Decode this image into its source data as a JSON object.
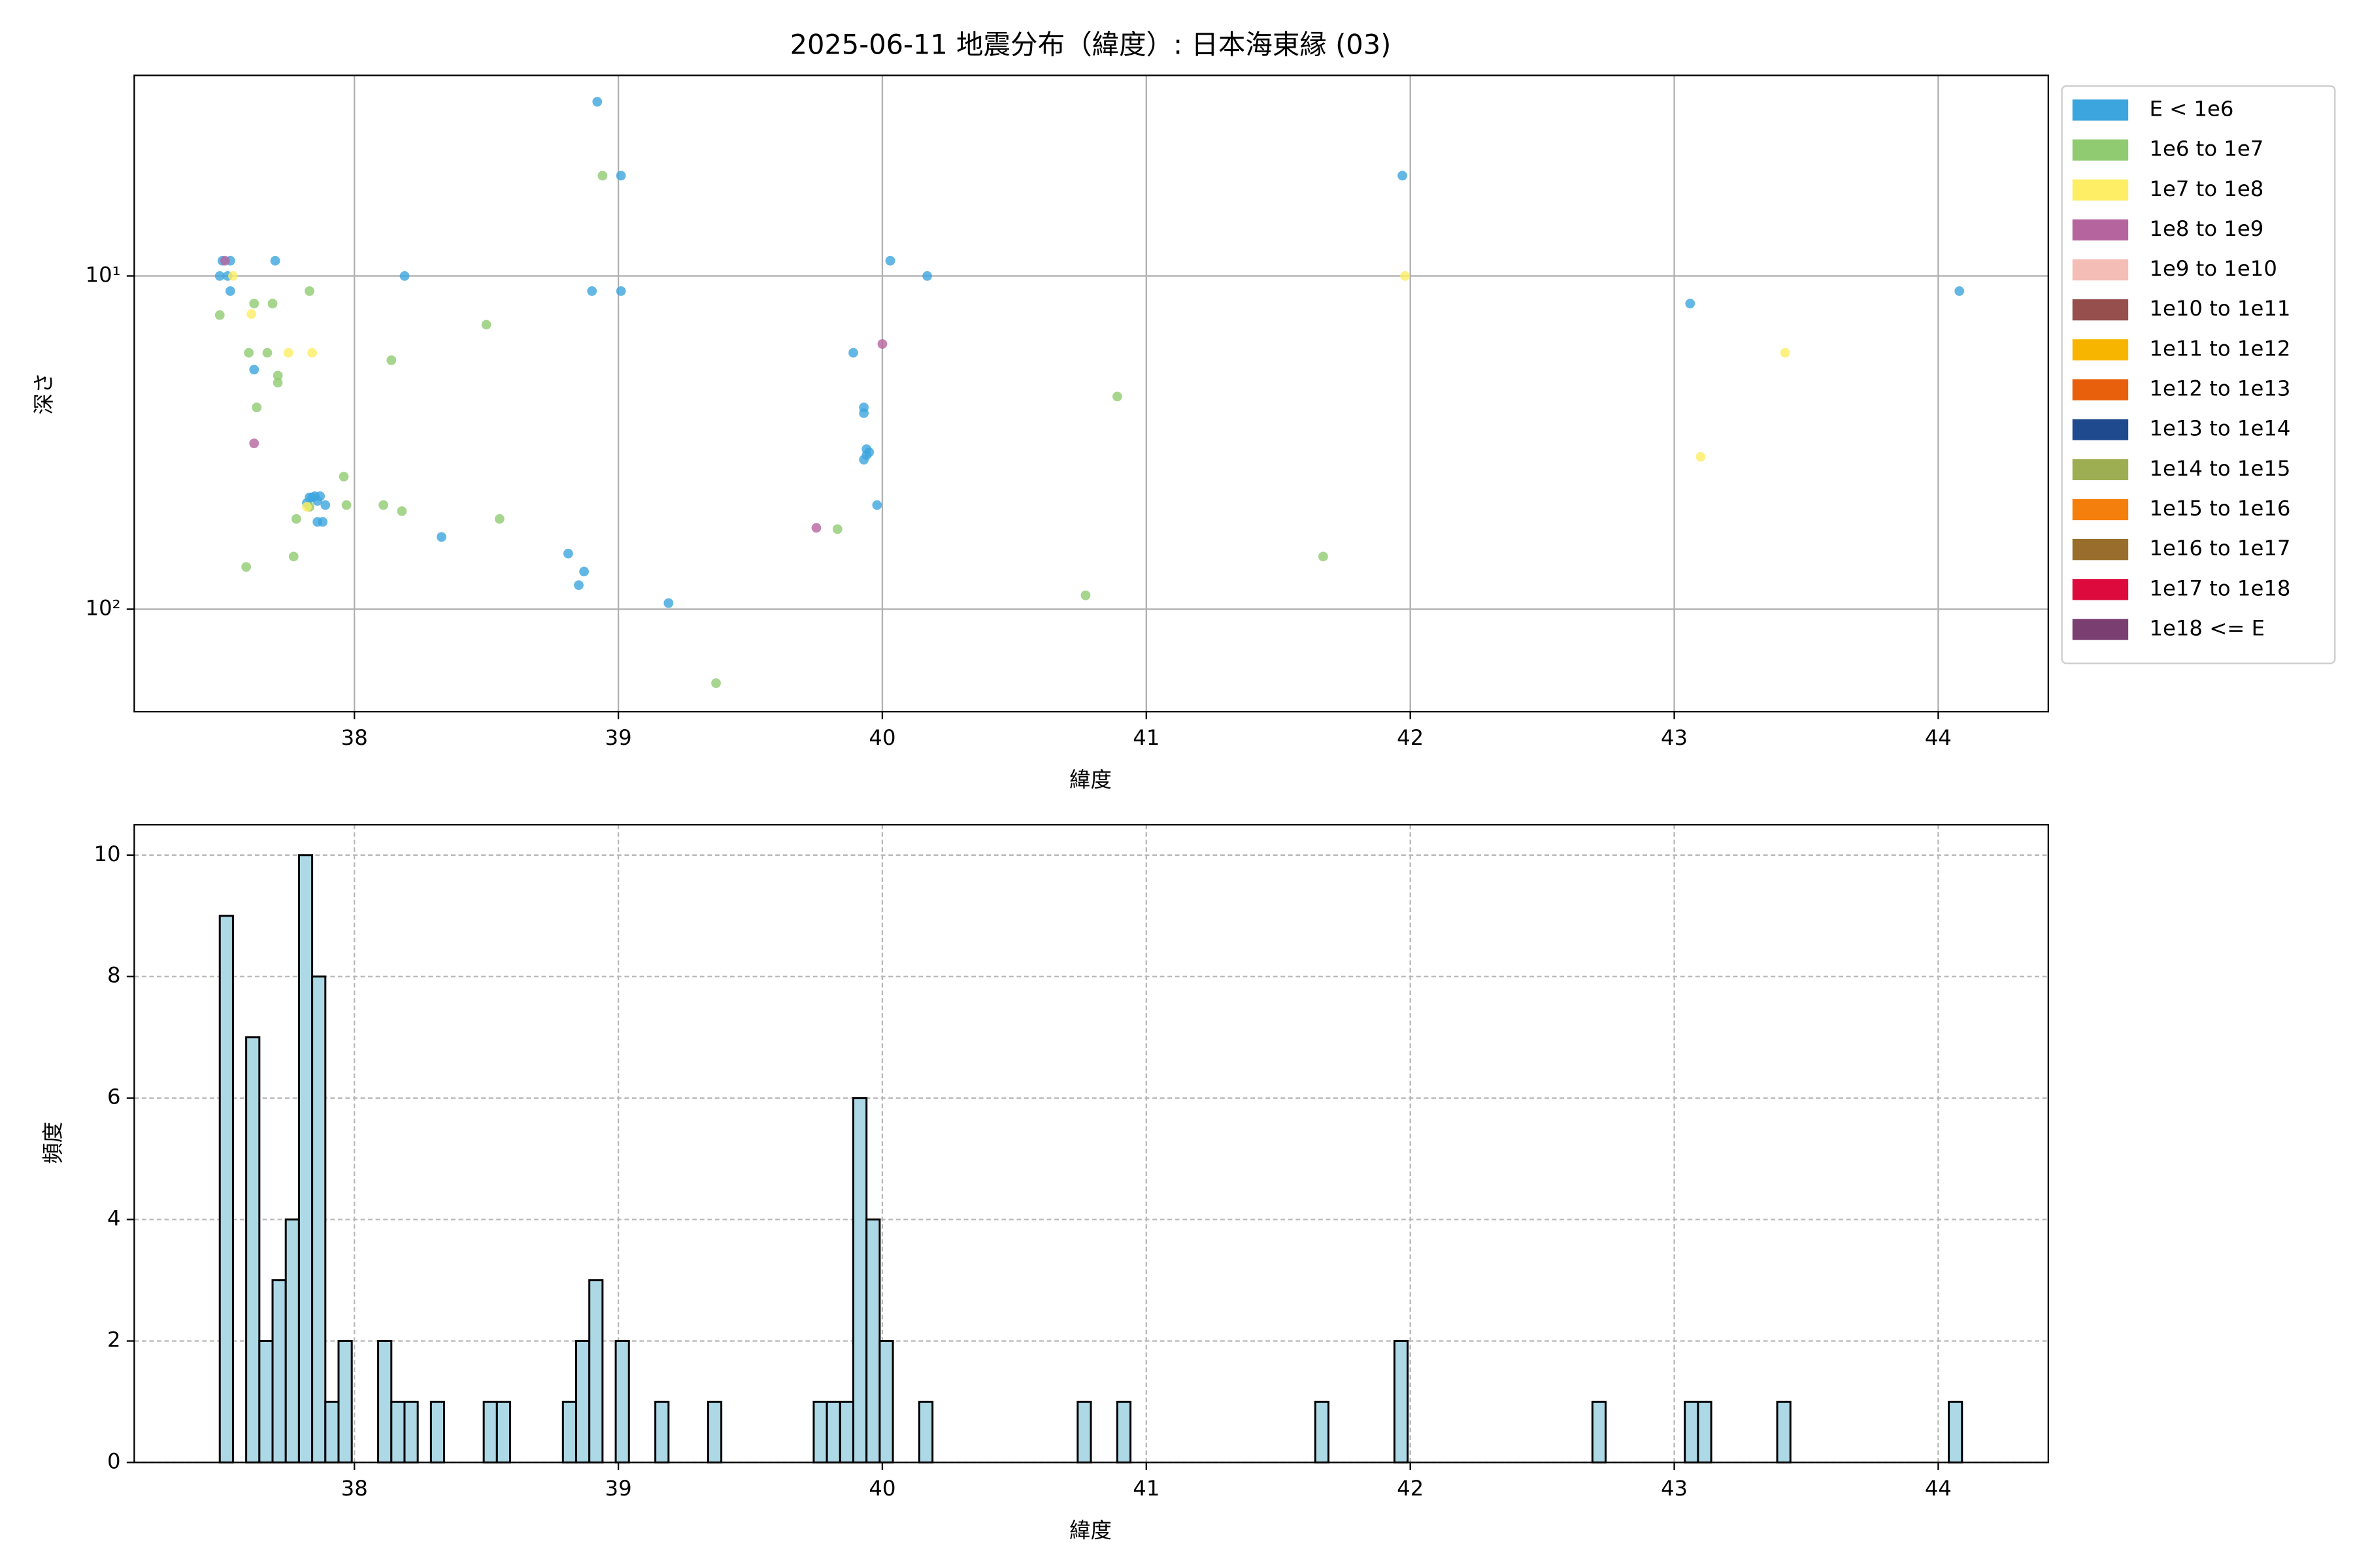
{
  "chart_data": [
    {
      "type": "scatter",
      "title": "2025-06-11 地震分布（緯度）: 日本海東縁 (03)",
      "xlabel": "緯度",
      "ylabel": "深さ",
      "xlim": [
        37.166,
        44.417
      ],
      "xticks": [
        38,
        39,
        40,
        41,
        42,
        43,
        44
      ],
      "ylim": [
        203,
        2.5
      ],
      "yscale": "log",
      "yticks": [
        {
          "value": 10,
          "label": "10¹"
        },
        {
          "value": 100,
          "label": "10²"
        }
      ],
      "grid": true,
      "legend": "outside",
      "series": [
        {
          "name": "E < 1e6",
          "color": "#3ca5dd",
          "x": [
            38.92,
            39.01,
            41.97,
            37.5,
            37.53,
            37.7,
            37.49,
            37.52,
            37.53,
            38.19,
            38.9,
            39.01,
            40.03,
            40.17,
            43.06,
            44.08,
            37.62,
            39.89,
            39.93,
            39.93,
            39.94,
            39.95,
            39.94,
            39.93,
            39.98,
            37.83,
            37.84,
            37.85,
            37.87,
            37.82,
            37.86,
            37.89,
            37.86,
            37.88,
            38.33,
            38.81,
            38.87,
            38.85,
            39.19
          ],
          "y": [
            3.0,
            5.0,
            5.0,
            9.0,
            9.0,
            9.0,
            10,
            10,
            11.1,
            10,
            11.1,
            11.1,
            9.0,
            10,
            12.1,
            11.1,
            19.1,
            17.0,
            24.8,
            25.8,
            33.1,
            33.8,
            34.5,
            35.6,
            48.7,
            46.2,
            46.2,
            45.8,
            45.8,
            48.0,
            47.3,
            48.7,
            54.7,
            54.7,
            60.7,
            68.1,
            77.1,
            84.7,
            95.9
          ]
        },
        {
          "name": "1e6 to 1e7",
          "color": "#90cb72",
          "x": [
            38.94,
            37.49,
            37.62,
            37.69,
            37.83,
            38.5,
            37.6,
            37.67,
            38.14,
            37.71,
            37.71,
            37.63,
            40.89,
            37.96,
            37.97,
            38.11,
            38.18,
            38.55,
            37.78,
            39.83,
            37.77,
            37.59,
            41.67,
            40.77,
            39.37,
            37.83
          ],
          "y": [
            5.0,
            13.1,
            12.1,
            12.1,
            11.1,
            14.0,
            17.0,
            17.0,
            17.9,
            19.9,
            20.9,
            24.8,
            23.0,
            40.0,
            48.7,
            48.7,
            50.8,
            53.6,
            53.6,
            57.5,
            69.5,
            74.7,
            69.5,
            90.9,
            166.7,
            49.3
          ]
        },
        {
          "name": "1e7 to 1e8",
          "color": "#fdee65",
          "x": [
            37.54,
            37.61,
            37.75,
            37.84,
            41.98,
            43.42,
            43.1,
            37.82
          ],
          "y": [
            10,
            13.0,
            17.0,
            17.0,
            10,
            17.0,
            34.9,
            49.3
          ]
        },
        {
          "name": "1e8 to 1e9",
          "color": "#b5649e",
          "x": [
            37.51,
            40.0,
            37.62,
            39.75
          ],
          "y": [
            9.0,
            16.0,
            31.8,
            57.0
          ]
        },
        {
          "name": "1e9 to 1e10",
          "color": "#f4bdb5",
          "x": [],
          "y": []
        },
        {
          "name": "1e10 to 1e11",
          "color": "#964f4c",
          "x": [],
          "y": []
        },
        {
          "name": "1e11 to 1e12",
          "color": "#f7b500",
          "x": [],
          "y": []
        },
        {
          "name": "1e12 to 1e13",
          "color": "#e8600c",
          "x": [],
          "y": []
        },
        {
          "name": "1e13 to 1e14",
          "color": "#1f4a8e",
          "x": [],
          "y": []
        },
        {
          "name": "1e14 to 1e15",
          "color": "#9cae51",
          "x": [],
          "y": []
        },
        {
          "name": "1e15 to 1e16",
          "color": "#f57f0d",
          "x": [],
          "y": []
        },
        {
          "name": "1e16 to 1e17",
          "color": "#996e2c",
          "x": [],
          "y": []
        },
        {
          "name": "1e17 to 1e18",
          "color": "#dc0a3d",
          "x": [],
          "y": []
        },
        {
          "name": "1e18 <= E",
          "color": "#7b3e70",
          "x": [],
          "y": []
        }
      ]
    },
    {
      "type": "histogram",
      "xlabel": "緯度",
      "ylabel": "頻度",
      "xlim": [
        37.166,
        44.417
      ],
      "xticks": [
        38,
        39,
        40,
        41,
        42,
        43,
        44
      ],
      "ylim": [
        0,
        10.5
      ],
      "yticks": [
        0,
        2,
        4,
        6,
        8,
        10
      ],
      "grid": true,
      "grid_linestyle": "dashed",
      "color": "#add8e6",
      "edgecolor": "#000000",
      "bins": [
        37.49,
        37.54,
        37.59,
        37.64,
        37.69,
        37.74,
        37.79,
        37.84,
        37.89,
        37.94,
        37.99,
        38.04,
        38.09,
        38.14,
        38.19,
        38.24,
        38.29,
        38.34,
        38.39,
        38.44,
        38.49,
        38.54,
        38.59,
        38.64,
        38.69,
        38.74,
        38.79,
        38.84,
        38.89,
        38.94,
        38.99,
        39.04,
        39.09,
        39.14,
        39.19,
        39.24,
        39.29,
        39.34,
        39.39,
        39.44,
        39.49,
        39.54,
        39.59,
        39.64,
        39.69,
        39.74,
        39.79,
        39.84,
        39.89,
        39.94,
        39.99,
        40.04,
        40.09,
        40.14,
        40.19,
        40.24,
        40.29,
        40.34,
        40.39,
        40.44,
        40.49,
        40.54,
        40.59,
        40.64,
        40.69,
        40.74,
        40.79,
        40.84,
        40.89,
        40.94,
        40.99,
        41.04,
        41.09,
        41.14,
        41.19,
        41.24,
        41.29,
        41.34,
        41.39,
        41.44,
        41.49,
        41.54,
        41.59,
        41.64,
        41.69,
        41.74,
        41.79,
        41.84,
        41.89,
        41.94,
        41.99,
        42.04,
        42.09,
        42.14,
        42.19,
        42.24,
        42.29,
        42.34,
        42.39,
        42.44,
        42.49,
        42.54,
        42.59,
        42.64,
        42.69,
        42.74,
        42.79,
        42.84,
        42.89,
        42.94,
        42.99,
        43.04,
        43.09,
        43.14,
        43.19,
        43.24,
        43.29,
        43.34,
        43.39,
        43.44,
        43.49,
        43.54,
        43.59,
        43.64,
        43.69,
        43.74,
        43.79,
        43.84,
        43.89,
        43.94,
        43.99,
        44.04,
        44.09
      ],
      "counts": [
        9,
        0,
        7,
        2,
        3,
        4,
        10,
        8,
        1,
        2,
        0,
        0,
        2,
        1,
        1,
        0,
        1,
        0,
        0,
        0,
        1,
        1,
        0,
        0,
        0,
        0,
        1,
        2,
        3,
        0,
        2,
        0,
        0,
        1,
        0,
        0,
        0,
        1,
        0,
        0,
        0,
        0,
        0,
        0,
        0,
        1,
        1,
        1,
        6,
        4,
        2,
        0,
        0,
        1,
        0,
        0,
        0,
        0,
        0,
        0,
        0,
        0,
        0,
        0,
        0,
        1,
        0,
        0,
        1,
        0,
        0,
        0,
        0,
        0,
        0,
        0,
        0,
        0,
        0,
        0,
        0,
        0,
        0,
        1,
        0,
        0,
        0,
        0,
        0,
        2,
        0,
        0,
        0,
        0,
        0,
        0,
        0,
        0,
        0,
        0,
        0,
        0,
        0,
        0,
        1,
        0,
        0,
        0,
        0,
        0,
        0,
        1,
        1,
        0,
        0,
        0,
        0,
        0,
        1,
        0,
        0,
        0,
        0,
        0,
        0,
        0,
        0,
        0,
        0,
        0,
        0,
        1
      ]
    }
  ]
}
